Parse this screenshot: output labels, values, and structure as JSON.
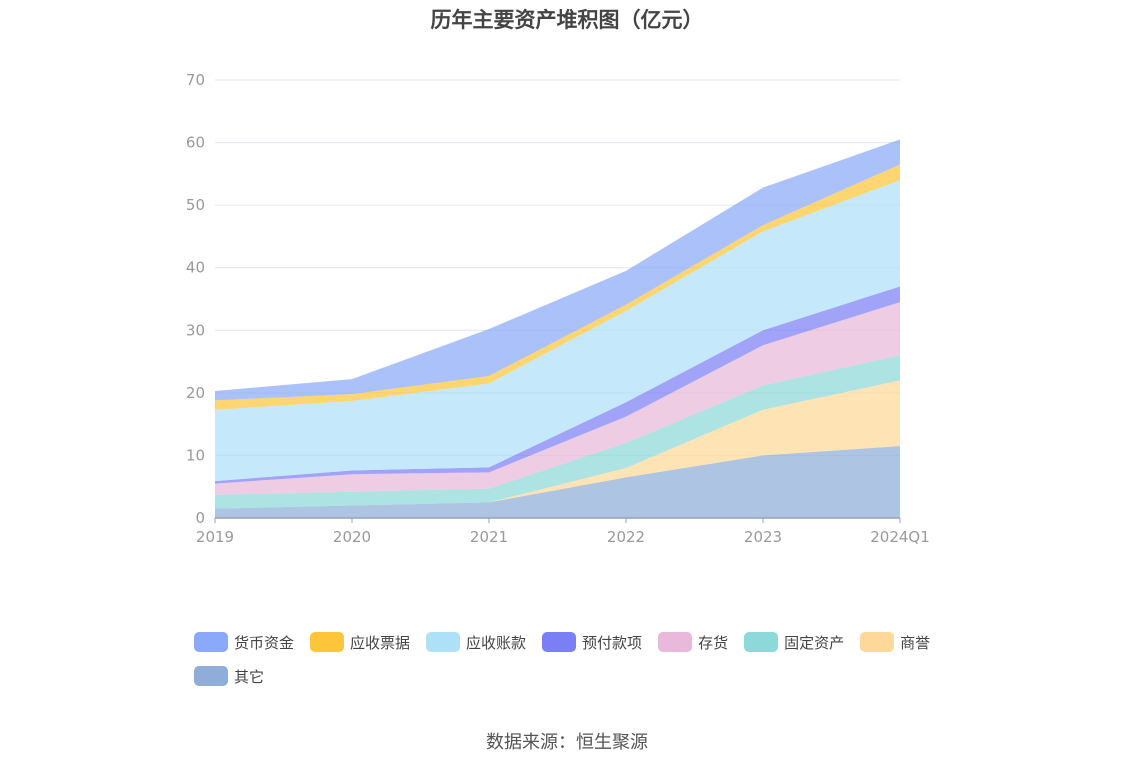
{
  "title": "历年主要资产堆积图（亿元）",
  "source": "数据来源：恒生聚源",
  "chart_data": {
    "type": "area",
    "stacked": true,
    "categories": [
      "2019",
      "2020",
      "2021",
      "2022",
      "2023",
      "2024Q1"
    ],
    "ylim": [
      0,
      70
    ],
    "yticks": [
      "0",
      "10",
      "20",
      "30",
      "40",
      "50",
      "60",
      "70"
    ],
    "grid": true,
    "legend_position": "bottom",
    "series": [
      {
        "name": "其它",
        "color": "#8fadd8",
        "values": [
          1.5,
          2.0,
          2.5,
          6.5,
          10.0,
          11.5
        ]
      },
      {
        "name": "商誉",
        "color": "#fdd898",
        "values": [
          0.0,
          0.0,
          0.0,
          1.5,
          7.3,
          10.5
        ]
      },
      {
        "name": "固定资产",
        "color": "#8dd8d8",
        "values": [
          2.2,
          2.2,
          2.2,
          4.0,
          3.9,
          4.0
        ]
      },
      {
        "name": "存货",
        "color": "#e8b9da",
        "values": [
          1.8,
          2.8,
          2.6,
          4.2,
          6.4,
          8.5
        ]
      },
      {
        "name": "预付款项",
        "color": "#7b7ff5",
        "values": [
          0.4,
          0.6,
          0.8,
          2.3,
          2.4,
          2.5
        ]
      },
      {
        "name": "应收账款",
        "color": "#aee0f8",
        "values": [
          11.4,
          11.1,
          13.4,
          14.6,
          15.8,
          17.0
        ]
      },
      {
        "name": "应收票据",
        "color": "#fcc53a",
        "values": [
          1.5,
          1.1,
          1.2,
          1.0,
          1.0,
          2.5
        ]
      },
      {
        "name": "货币资金",
        "color": "#8aa9f8",
        "values": [
          1.5,
          2.4,
          7.5,
          5.4,
          6.0,
          4.0
        ]
      }
    ]
  }
}
